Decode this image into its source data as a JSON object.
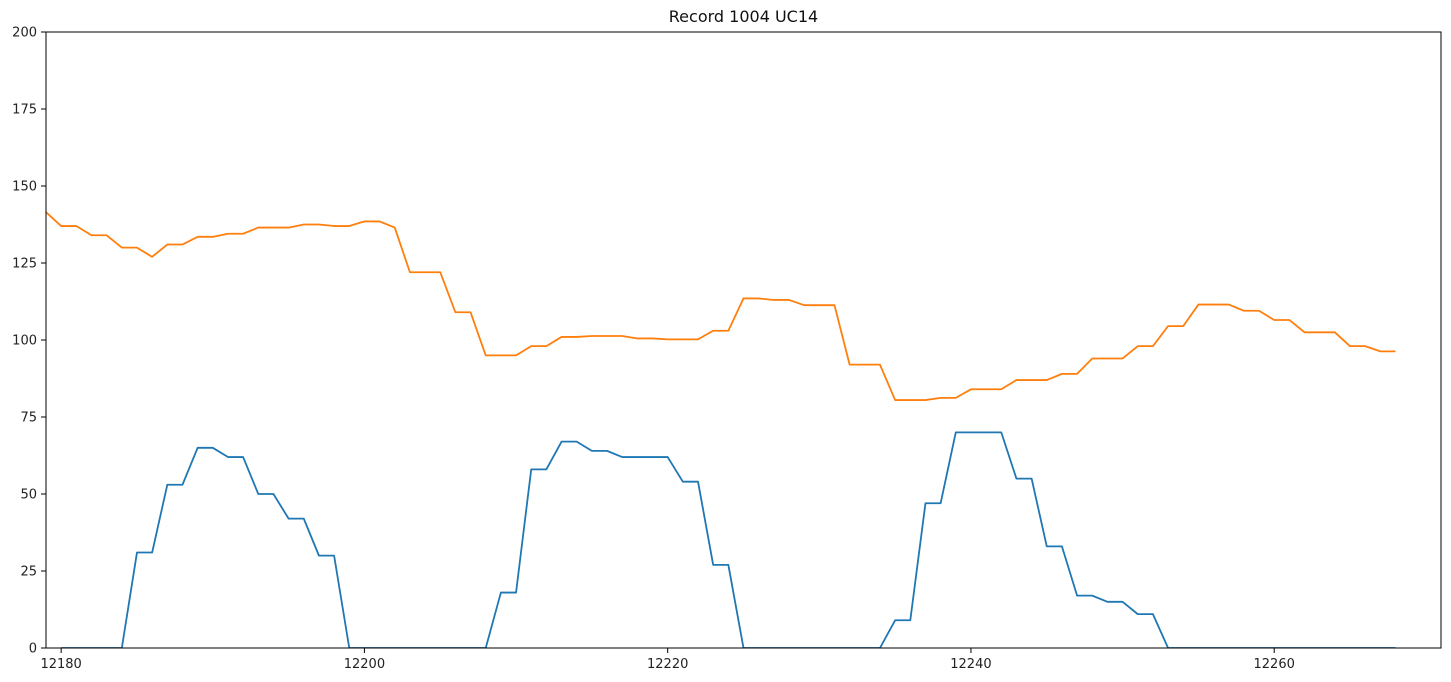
{
  "chart_data": {
    "type": "line",
    "title": "Record 1004 UC14",
    "xlabel": "",
    "ylabel": "",
    "xlim": [
      12179,
      12271
    ],
    "ylim": [
      0,
      200
    ],
    "xticks": [
      12180,
      12200,
      12220,
      12240,
      12260
    ],
    "yticks": [
      0,
      25,
      50,
      75,
      100,
      125,
      150,
      175,
      200
    ],
    "grid": false,
    "legend": "none",
    "series": [
      {
        "color": "#1f77b4",
        "x": [
          12180,
          12181,
          12182,
          12183,
          12184,
          12185,
          12186,
          12187,
          12188,
          12189,
          12190,
          12191,
          12192,
          12193,
          12194,
          12195,
          12196,
          12197,
          12198,
          12199,
          12200,
          12201,
          12202,
          12203,
          12204,
          12205,
          12206,
          12207,
          12208,
          12209,
          12210,
          12211,
          12212,
          12213,
          12214,
          12215,
          12216,
          12217,
          12218,
          12219,
          12220,
          12221,
          12222,
          12223,
          12224,
          12225,
          12226,
          12227,
          12228,
          12229,
          12230,
          12231,
          12232,
          12233,
          12234,
          12235,
          12236,
          12237,
          12238,
          12239,
          12240,
          12241,
          12242,
          12243,
          12244,
          12245,
          12246,
          12247,
          12248,
          12249,
          12250,
          12251,
          12252,
          12253,
          12254,
          12255,
          12256,
          12257,
          12258,
          12259,
          12260,
          12261,
          12262,
          12263,
          12264,
          12265,
          12266,
          12267,
          12268
        ],
        "y": [
          0,
          0,
          0,
          0,
          0,
          31,
          31,
          53,
          53,
          65,
          65,
          62,
          62,
          50,
          50,
          42,
          42,
          30,
          30,
          0,
          0,
          0,
          0,
          0,
          0,
          0,
          0,
          0,
          0,
          18,
          18,
          58,
          58,
          67,
          67,
          64,
          64,
          62,
          62,
          62,
          62,
          54,
          54,
          27,
          27,
          0,
          0,
          0,
          0,
          0,
          0,
          0,
          0,
          0,
          0,
          9,
          9,
          47,
          47,
          70,
          70,
          70,
          70,
          55,
          55,
          33,
          33,
          17,
          17,
          15,
          15,
          11,
          11,
          0,
          0,
          0,
          0,
          0,
          0,
          0,
          0,
          0,
          0,
          0,
          0,
          0,
          0,
          0,
          0
        ]
      },
      {
        "color": "#ff7f0e",
        "x": [
          12179,
          12180,
          12181,
          12182,
          12183,
          12184,
          12185,
          12186,
          12187,
          12188,
          12189,
          12190,
          12191,
          12192,
          12193,
          12194,
          12195,
          12196,
          12197,
          12198,
          12199,
          12200,
          12201,
          12202,
          12203,
          12204,
          12205,
          12206,
          12207,
          12208,
          12209,
          12210,
          12211,
          12212,
          12213,
          12214,
          12215,
          12216,
          12217,
          12218,
          12219,
          12220,
          12221,
          12222,
          12223,
          12224,
          12225,
          12226,
          12227,
          12228,
          12229,
          12230,
          12231,
          12232,
          12233,
          12234,
          12235,
          12236,
          12237,
          12238,
          12239,
          12240,
          12241,
          12242,
          12243,
          12244,
          12245,
          12246,
          12247,
          12248,
          12249,
          12250,
          12251,
          12252,
          12253,
          12254,
          12255,
          12256,
          12257,
          12258,
          12259,
          12260,
          12261,
          12262,
          12263,
          12264,
          12265,
          12266,
          12267,
          12268
        ],
        "y": [
          141.5,
          137,
          137,
          134,
          134,
          130,
          130,
          127,
          131,
          131,
          133.5,
          133.5,
          134.5,
          134.5,
          136.5,
          136.5,
          136.5,
          137.5,
          137.5,
          137,
          137,
          138.5,
          138.5,
          136.5,
          122,
          122,
          122,
          109,
          109,
          95,
          95,
          95,
          98,
          98,
          101,
          101,
          101.3,
          101.3,
          101.3,
          100.5,
          100.5,
          100.2,
          100.2,
          100.2,
          103,
          103,
          113.5,
          113.5,
          113,
          113,
          111.3,
          111.3,
          111.3,
          92,
          92,
          92,
          80.5,
          80.5,
          80.5,
          81.2,
          81.2,
          84,
          84,
          84,
          87,
          87,
          87,
          89,
          89,
          94,
          94,
          94,
          98,
          98,
          104.5,
          104.5,
          111.5,
          111.5,
          111.5,
          109.5,
          109.5,
          106.5,
          106.5,
          102.5,
          102.5,
          102.5,
          98,
          98,
          96.3,
          96.3
        ]
      }
    ]
  }
}
